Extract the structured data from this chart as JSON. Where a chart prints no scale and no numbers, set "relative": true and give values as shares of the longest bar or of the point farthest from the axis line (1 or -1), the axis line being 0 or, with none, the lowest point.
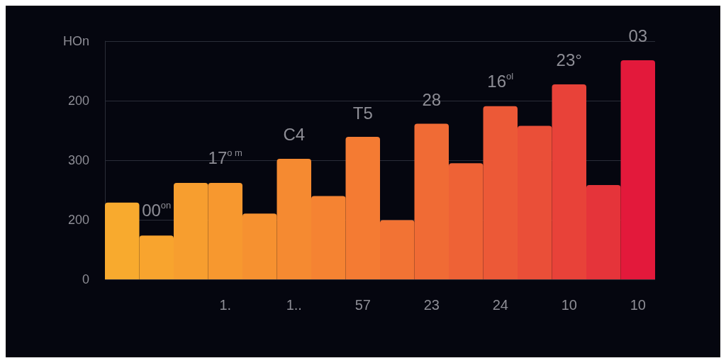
{
  "chart_data": {
    "type": "bar",
    "relative": true,
    "categories": [
      null,
      null,
      null,
      "1.",
      null,
      "1..",
      null,
      "57",
      null,
      "23",
      null,
      "24",
      null,
      "10",
      null,
      "10"
    ],
    "values": [
      0.35,
      0.2,
      0.44,
      0.44,
      0.3,
      0.55,
      0.38,
      0.65,
      0.27,
      0.71,
      0.53,
      0.79,
      0.7,
      0.89,
      0.43,
      1
    ],
    "colors": [
      "#f8aa2e",
      "#f8a42e",
      "#f79e2f",
      "#f7982f",
      "#f69130",
      "#f58a31",
      "#f58332",
      "#f47b33",
      "#f27334",
      "#f06b35",
      "#ee6236",
      "#ec5937",
      "#ea4f38",
      "#e84239",
      "#e5343a",
      "#e3193b"
    ],
    "annotations": [
      "0",
      "200",
      "300",
      "200",
      "HOn",
      "00$^{on}$",
      "17$^{o m}$",
      "C4",
      "T5",
      "28",
      "16$^{ol}$",
      "23°",
      "03"
    ],
    "grid": "y"
  }
}
